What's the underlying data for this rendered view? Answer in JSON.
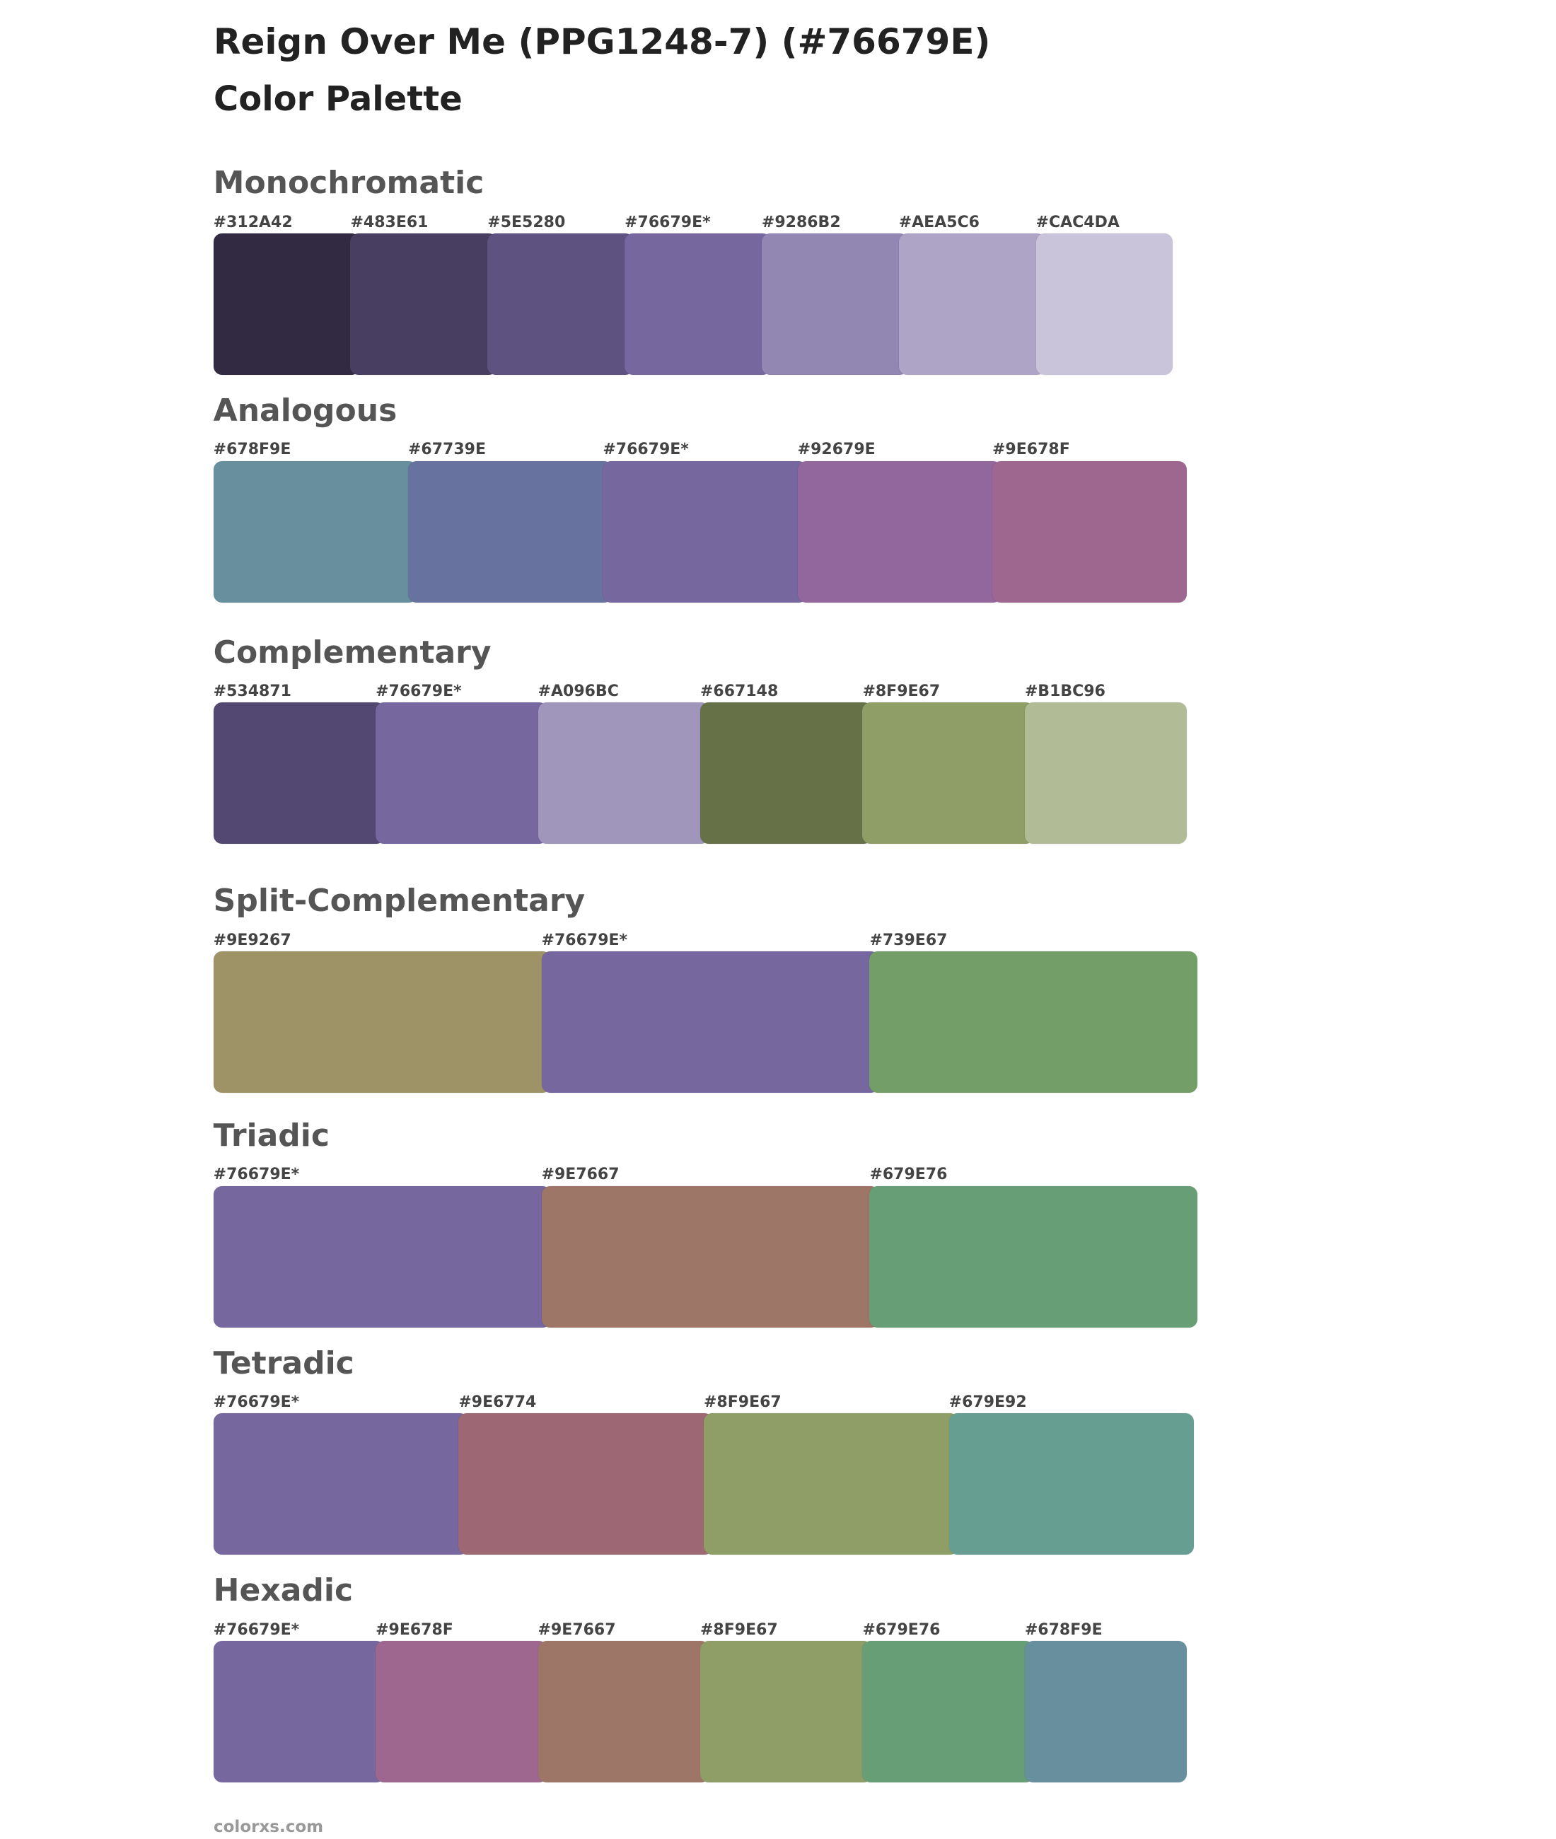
{
  "header": {
    "title": "Reign Over Me  (PPG1248-7) (#76679E)",
    "subtitle": "Color Palette"
  },
  "sections": [
    {
      "name": "Monochromatic",
      "swatches": [
        {
          "label": "#312A42",
          "color": "#312A42"
        },
        {
          "label": "#483E61",
          "color": "#483E61"
        },
        {
          "label": "#5E5280",
          "color": "#5E5280"
        },
        {
          "label": "#76679E*",
          "color": "#76679E"
        },
        {
          "label": "#9286B2",
          "color": "#9286B2"
        },
        {
          "label": "#AEA5C6",
          "color": "#AEA5C6"
        },
        {
          "label": "#CAC4DA",
          "color": "#CAC4DA"
        }
      ]
    },
    {
      "name": "Analogous",
      "swatches": [
        {
          "label": "#678F9E",
          "color": "#678F9E"
        },
        {
          "label": "#67739E",
          "color": "#67739E"
        },
        {
          "label": "#76679E*",
          "color": "#76679E"
        },
        {
          "label": "#92679E",
          "color": "#92679E"
        },
        {
          "label": "#9E678F",
          "color": "#9E678F"
        }
      ]
    },
    {
      "name": "Complementary",
      "swatches": [
        {
          "label": "#534871",
          "color": "#534871"
        },
        {
          "label": "#76679E*",
          "color": "#76679E"
        },
        {
          "label": "#A096BC",
          "color": "#A096BC"
        },
        {
          "label": "#667148",
          "color": "#667148"
        },
        {
          "label": "#8F9E67",
          "color": "#8F9E67"
        },
        {
          "label": "#B1BC96",
          "color": "#B1BC96"
        }
      ]
    },
    {
      "name": "Split-Complementary",
      "swatches": [
        {
          "label": "#9E9267",
          "color": "#9E9267"
        },
        {
          "label": "#76679E*",
          "color": "#76679E"
        },
        {
          "label": "#739E67",
          "color": "#739E67"
        }
      ]
    },
    {
      "name": "Triadic",
      "swatches": [
        {
          "label": "#76679E*",
          "color": "#76679E"
        },
        {
          "label": "#9E7667",
          "color": "#9E7667"
        },
        {
          "label": "#679E76",
          "color": "#679E76"
        }
      ]
    },
    {
      "name": "Tetradic",
      "swatches": [
        {
          "label": "#76679E*",
          "color": "#76679E"
        },
        {
          "label": "#9E6774",
          "color": "#9E6774"
        },
        {
          "label": "#8F9E67",
          "color": "#8F9E67"
        },
        {
          "label": "#679E92",
          "color": "#679E92"
        }
      ]
    },
    {
      "name": "Hexadic",
      "swatches": [
        {
          "label": "#76679E*",
          "color": "#76679E"
        },
        {
          "label": "#9E678F",
          "color": "#9E678F"
        },
        {
          "label": "#9E7667",
          "color": "#9E7667"
        },
        {
          "label": "#8F9E67",
          "color": "#8F9E67"
        },
        {
          "label": "#679E76",
          "color": "#679E76"
        },
        {
          "label": "#678F9E",
          "color": "#678F9E"
        }
      ]
    }
  ],
  "footer": "colorxs.com"
}
